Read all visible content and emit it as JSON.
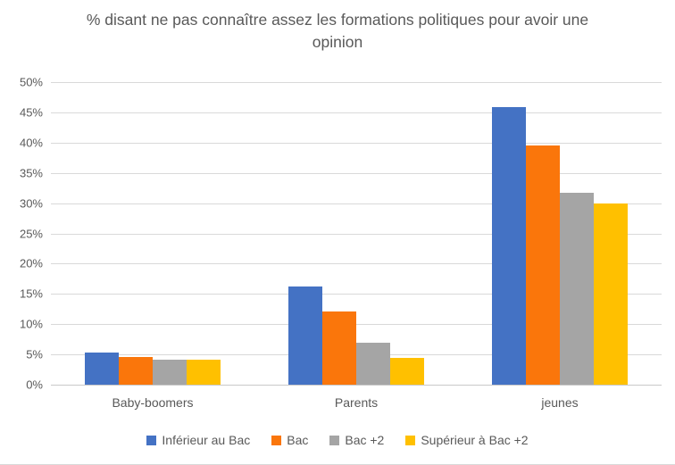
{
  "chart_data": {
    "type": "bar",
    "title": "% disant ne pas connaître assez les formations politiques pour avoir une opinion",
    "categories": [
      "Baby-boomers",
      "Parents",
      "jeunes"
    ],
    "series": [
      {
        "name": "Inférieur au Bac",
        "color": "#4472C4",
        "values": [
          5.3,
          16.3,
          45.8
        ]
      },
      {
        "name": "Bac",
        "color": "#FA760B",
        "values": [
          4.6,
          12.1,
          39.5
        ]
      },
      {
        "name": "Bac +2",
        "color": "#A5A5A5",
        "values": [
          4.1,
          6.9,
          31.7
        ]
      },
      {
        "name": "Supérieur à Bac +2",
        "color": "#FFC000",
        "values": [
          4.1,
          4.4,
          29.9
        ]
      }
    ],
    "xlabel": "",
    "ylabel": "",
    "ylim": [
      0,
      50
    ],
    "ytick_step": 5,
    "ytick_suffix": "%",
    "grid": true,
    "legend_position": "bottom",
    "gridline_color": "#D9D9D9",
    "text_color": "#595959",
    "background_color": "#FFFFFF"
  }
}
